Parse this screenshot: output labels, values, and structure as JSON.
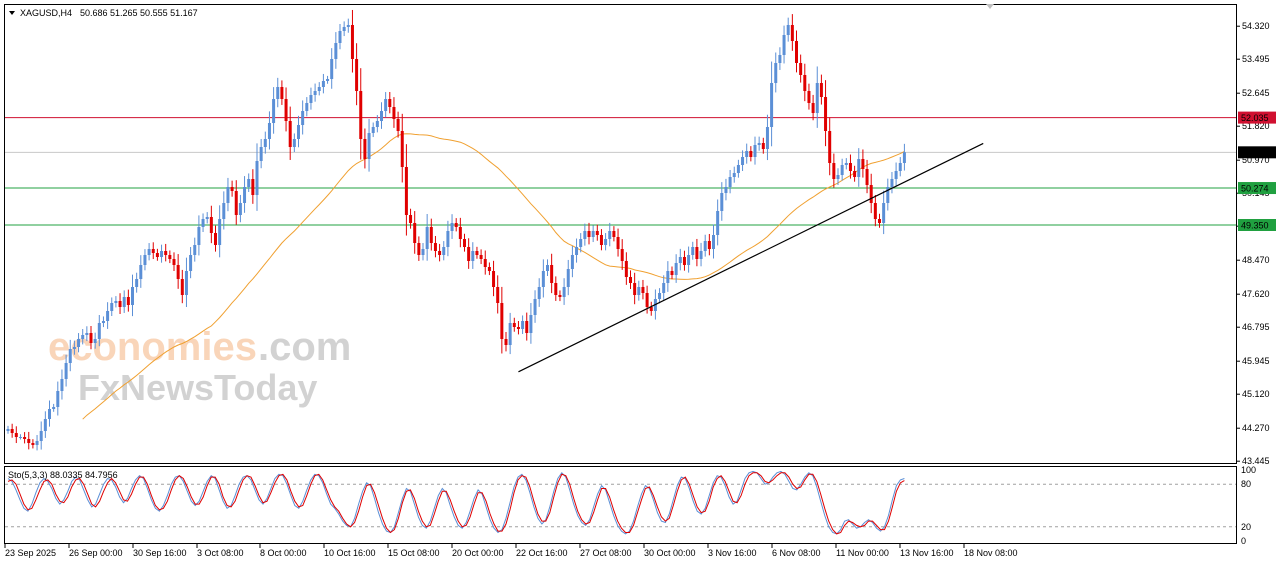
{
  "header": {
    "symbol": "XAGUSD,H4",
    "ohlc": "50.686 51.265 50.555 51.167"
  },
  "watermark": {
    "line1_a": "economies",
    "line1_b": ".com",
    "line2": "FxNewsToday"
  },
  "stoch": {
    "label": "Sto(5,3,3) 88.0335 84.7956",
    "levels": [
      "100",
      "80",
      "20",
      "0"
    ]
  },
  "colors": {
    "bull": "#5b8fd6",
    "bear": "#e00000",
    "ma": "#f0a030",
    "resistance": "#d01030",
    "support": "#20a040",
    "current": "#000000",
    "trend": "#000000"
  },
  "chart_data": {
    "type": "candlestick",
    "symbol": "XAGUSD",
    "timeframe": "H4",
    "ylim": [
      43.4,
      54.85
    ],
    "yticks": [
      54.32,
      53.495,
      52.645,
      51.82,
      50.97,
      50.145,
      49.32,
      48.47,
      47.62,
      46.795,
      45.945,
      45.12,
      44.27,
      43.445
    ],
    "ytick_labels": [
      "54.320",
      "53.495",
      "52.645",
      "51.820",
      "50.970",
      "50.145",
      "49.320",
      "48.470",
      "47.620",
      "46.795",
      "45.945",
      "45.120",
      "44.270",
      "43.445"
    ],
    "xtick_labels": [
      "23 Sep 2025",
      "26 Sep 00:00",
      "30 Sep 16:00",
      "3 Oct 08:00",
      "8 Oct 00:00",
      "10 Oct 16:00",
      "15 Oct 08:00",
      "20 Oct 00:00",
      "22 Oct 16:00",
      "27 Oct 08:00",
      "30 Oct 00:00",
      "3 Nov 16:00",
      "6 Nov 08:00",
      "11 Nov 00:00",
      "13 Nov 16:00",
      "18 Nov 08:00"
    ],
    "price_levels": [
      {
        "label": "52.035",
        "value": 52.035,
        "kind": "resistance"
      },
      {
        "label": "51.167",
        "value": 51.167,
        "kind": "current"
      },
      {
        "label": "50.274",
        "value": 50.274,
        "kind": "support"
      },
      {
        "label": "49.350",
        "value": 49.35,
        "kind": "support"
      }
    ],
    "trendline": {
      "from_bar": 123,
      "from_value": 45.68,
      "to_bar": 235,
      "to_value": 51.39
    },
    "closes": [
      44.25,
      44.15,
      44.05,
      44.05,
      44.0,
      43.9,
      43.85,
      43.95,
      44.2,
      44.5,
      44.75,
      44.8,
      45.2,
      45.5,
      45.9,
      46.25,
      46.3,
      46.5,
      46.6,
      46.65,
      46.4,
      46.5,
      46.9,
      46.95,
      47.2,
      47.4,
      47.45,
      47.3,
      47.55,
      47.35,
      47.8,
      48.0,
      48.35,
      48.6,
      48.75,
      48.65,
      48.55,
      48.7,
      48.6,
      48.5,
      48.35,
      48.0,
      47.6,
      48.2,
      48.6,
      48.85,
      49.3,
      49.5,
      49.55,
      49.15,
      48.85,
      49.5,
      49.9,
      50.3,
      50.2,
      49.6,
      49.9,
      50.3,
      50.5,
      50.1,
      50.95,
      51.3,
      51.5,
      51.9,
      52.5,
      52.8,
      52.5,
      51.95,
      51.3,
      51.5,
      51.85,
      52.2,
      52.4,
      52.6,
      52.7,
      52.8,
      52.95,
      53.0,
      53.5,
      53.9,
      54.2,
      54.3,
      54.35,
      53.5,
      52.7,
      51.5,
      51.0,
      51.65,
      51.8,
      51.95,
      52.2,
      52.5,
      52.3,
      52.0,
      51.7,
      50.8,
      49.6,
      49.4,
      48.9,
      48.6,
      48.75,
      49.3,
      48.9,
      48.7,
      48.6,
      48.8,
      49.2,
      49.4,
      49.3,
      49.0,
      48.8,
      48.45,
      48.7,
      48.6,
      48.5,
      48.3,
      48.2,
      47.8,
      47.4,
      46.5,
      46.35,
      46.9,
      46.8,
      46.75,
      46.95,
      46.65,
      47.1,
      47.5,
      47.8,
      48.2,
      48.35,
      47.9,
      47.6,
      47.55,
      47.8,
      48.25,
      48.6,
      48.8,
      49.0,
      49.2,
      49.05,
      49.2,
      49.1,
      48.85,
      49.0,
      49.2,
      49.05,
      48.75,
      48.45,
      48.05,
      47.9,
      47.6,
      47.8,
      47.65,
      47.3,
      47.2,
      47.5,
      47.65,
      47.9,
      48.2,
      48.1,
      48.4,
      48.55,
      48.35,
      48.6,
      48.8,
      48.5,
      48.7,
      48.95,
      48.75,
      49.1,
      49.7,
      50.15,
      50.3,
      50.55,
      50.65,
      50.85,
      51.05,
      51.2,
      51.05,
      51.35,
      51.4,
      51.25,
      51.8,
      52.9,
      53.4,
      53.6,
      54.1,
      54.35,
      53.95,
      53.4,
      53.1,
      52.7,
      52.4,
      52.15,
      52.9,
      52.55,
      51.7,
      50.9,
      50.5,
      50.6,
      50.85,
      50.9,
      50.7,
      50.55,
      51.0,
      50.75,
      50.35,
      49.9,
      49.5,
      49.4,
      49.9,
      50.3,
      50.5,
      50.7,
      50.9,
      51.17
    ],
    "stoch_main": [
      88,
      84,
      72,
      58,
      46,
      42,
      52,
      68,
      82,
      88,
      84,
      74,
      60,
      52,
      58,
      70,
      84,
      90,
      86,
      72,
      58,
      48,
      52,
      66,
      80,
      88,
      86,
      76,
      62,
      54,
      60,
      74,
      86,
      92,
      88,
      74,
      58,
      46,
      42,
      50,
      64,
      80,
      90,
      92,
      84,
      70,
      56,
      50,
      56,
      70,
      84,
      92,
      88,
      72,
      56,
      46,
      50,
      64,
      80,
      90,
      92,
      86,
      72,
      58,
      52,
      60,
      74,
      88,
      94,
      92,
      80,
      64,
      50,
      46,
      56,
      72,
      86,
      94,
      92,
      82,
      66,
      52,
      46,
      38,
      28,
      22,
      20,
      32,
      52,
      70,
      82,
      78,
      60,
      40,
      24,
      14,
      12,
      20,
      40,
      60,
      74,
      70,
      52,
      34,
      22,
      18,
      28,
      46,
      64,
      74,
      68,
      50,
      34,
      22,
      18,
      26,
      42,
      60,
      72,
      66,
      48,
      30,
      18,
      12,
      16,
      32,
      54,
      76,
      90,
      94,
      86,
      68,
      48,
      32,
      24,
      30,
      48,
      70,
      88,
      96,
      90,
      72,
      52,
      36,
      26,
      22,
      30,
      48,
      66,
      78,
      72,
      54,
      36,
      22,
      14,
      10,
      14,
      28,
      48,
      66,
      78,
      74,
      58,
      40,
      28,
      26,
      38,
      58,
      78,
      90,
      88,
      74,
      56,
      42,
      38,
      46,
      64,
      82,
      92,
      90,
      78,
      62,
      52,
      56,
      72,
      88,
      96,
      98,
      96,
      88,
      80,
      82,
      90,
      96,
      98,
      94,
      84,
      74,
      72,
      80,
      90,
      96,
      92,
      76,
      56,
      36,
      20,
      12,
      10,
      16,
      28,
      30,
      24,
      18,
      20,
      26,
      30,
      26,
      18,
      14,
      20,
      36,
      58,
      78,
      86,
      88
    ],
    "stoch_signal": [
      84,
      86,
      80,
      66,
      52,
      44,
      46,
      58,
      72,
      84,
      86,
      80,
      66,
      56,
      54,
      62,
      76,
      86,
      88,
      80,
      66,
      52,
      48,
      56,
      70,
      82,
      88,
      82,
      70,
      58,
      56,
      66,
      80,
      90,
      90,
      80,
      64,
      50,
      44,
      46,
      56,
      72,
      86,
      92,
      88,
      76,
      62,
      52,
      52,
      62,
      78,
      90,
      90,
      80,
      62,
      50,
      48,
      56,
      72,
      86,
      92,
      90,
      78,
      64,
      54,
      56,
      68,
      82,
      92,
      94,
      86,
      70,
      56,
      48,
      50,
      64,
      80,
      92,
      94,
      86,
      72,
      58,
      48,
      42,
      32,
      24,
      20,
      26,
      42,
      62,
      78,
      80,
      68,
      50,
      32,
      18,
      12,
      16,
      32,
      54,
      70,
      72,
      60,
      42,
      28,
      20,
      22,
      38,
      56,
      70,
      70,
      58,
      42,
      28,
      20,
      22,
      34,
      52,
      68,
      68,
      56,
      38,
      24,
      14,
      14,
      24,
      44,
      68,
      86,
      92,
      90,
      76,
      56,
      38,
      28,
      28,
      40,
      62,
      82,
      94,
      92,
      80,
      60,
      42,
      30,
      24,
      26,
      40,
      58,
      74,
      74,
      62,
      44,
      28,
      18,
      12,
      12,
      22,
      40,
      58,
      74,
      76,
      64,
      48,
      34,
      28,
      32,
      50,
      70,
      86,
      90,
      80,
      64,
      48,
      40,
      42,
      56,
      76,
      88,
      92,
      84,
      70,
      56,
      54,
      64,
      80,
      92,
      96,
      96,
      92,
      84,
      82,
      86,
      92,
      96,
      96,
      90,
      80,
      74,
      76,
      86,
      94,
      94,
      84,
      66,
      46,
      28,
      16,
      10,
      12,
      22,
      28,
      26,
      22,
      20,
      22,
      28,
      28,
      22,
      16,
      16,
      28,
      48,
      70,
      82,
      85
    ]
  }
}
